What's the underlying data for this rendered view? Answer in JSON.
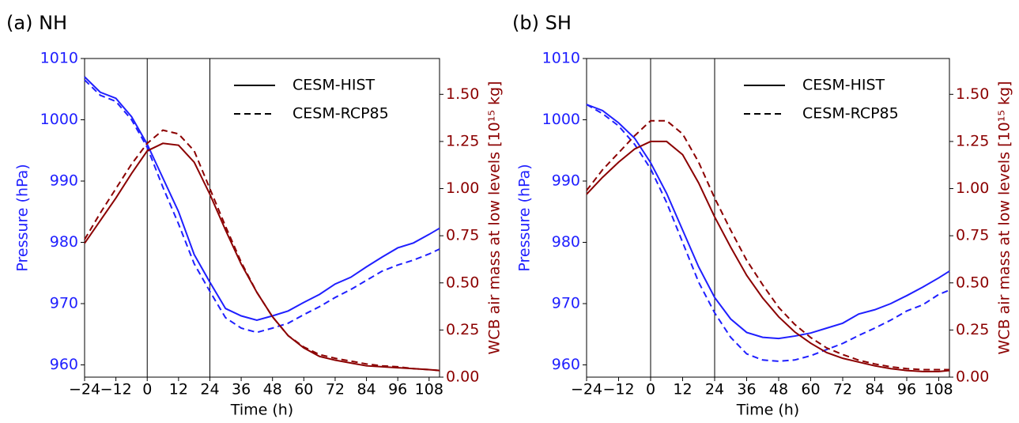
{
  "chart_data": [
    {
      "type": "line",
      "title": "(a) NH",
      "xlabel": "Time (h)",
      "ylabel": "Pressure (hPa)",
      "y2label": "WCB air mass at low levels [10¹⁵ kg]",
      "x": [
        -24,
        -18,
        -12,
        -6,
        0,
        6,
        12,
        18,
        24,
        30,
        36,
        42,
        48,
        54,
        60,
        66,
        72,
        78,
        84,
        90,
        96,
        102,
        108,
        112
      ],
      "xlim": [
        -24,
        112
      ],
      "xticks": [
        {
          "value": -24,
          "label": "−24"
        },
        {
          "value": -12,
          "label": "−12"
        },
        0,
        12,
        24,
        36,
        48,
        60,
        72,
        84,
        96,
        108
      ],
      "ylim": [
        958,
        1010
      ],
      "yticks": [
        960,
        970,
        980,
        990,
        1000,
        1010
      ],
      "y_color": "#1f1fff",
      "y2lim": [
        0,
        1.69
      ],
      "y2ticks": [
        {
          "value": 0,
          "label": "0.00"
        },
        {
          "value": 0.25,
          "label": "0.25"
        },
        {
          "value": 0.5,
          "label": "0.50"
        },
        {
          "value": 0.75,
          "label": "0.75"
        },
        {
          "value": 1,
          "label": "1.00"
        },
        {
          "value": 1.25,
          "label": "1.25"
        },
        {
          "value": 1.5,
          "label": "1.50"
        }
      ],
      "y2_color": "#8b0000",
      "vlines": [
        0,
        24
      ],
      "legend_loc": "upper right",
      "legend_color": "#000000",
      "legend": [
        {
          "label": "CESM-HIST",
          "dash": "solid"
        },
        {
          "label": "CESM-RCP85",
          "dash": "dashed"
        }
      ],
      "series": [
        {
          "axis": "y",
          "dash": "solid",
          "color": "#1f1fff",
          "values": [
            1007,
            1004.5,
            1003.5,
            1000.5,
            996,
            990.5,
            985,
            978,
            973.5,
            969.2,
            968,
            967.3,
            968,
            968.8,
            970.2,
            971.5,
            973.2,
            974.3,
            976,
            977.6,
            979.1,
            979.9,
            981.3,
            982.3
          ]
        },
        {
          "axis": "y",
          "dash": "dashed",
          "color": "#1f1fff",
          "values": [
            1006.5,
            1004,
            1003,
            1000,
            995.5,
            989,
            983,
            976.5,
            972,
            967.7,
            966,
            965.3,
            966,
            966.8,
            968.2,
            969.5,
            971,
            972.3,
            973.8,
            975.3,
            976.3,
            977.1,
            978.1,
            978.9
          ]
        },
        {
          "axis": "y2",
          "dash": "solid",
          "color": "#8b0000",
          "values": [
            0.71,
            0.83,
            0.95,
            1.08,
            1.2,
            1.24,
            1.23,
            1.14,
            0.97,
            0.78,
            0.6,
            0.45,
            0.32,
            0.22,
            0.155,
            0.11,
            0.09,
            0.075,
            0.06,
            0.055,
            0.05,
            0.045,
            0.04,
            0.035
          ]
        },
        {
          "axis": "y2",
          "dash": "dashed",
          "color": "#8b0000",
          "values": [
            0.73,
            0.87,
            1.0,
            1.13,
            1.24,
            1.31,
            1.29,
            1.2,
            1.0,
            0.8,
            0.61,
            0.45,
            0.32,
            0.22,
            0.16,
            0.12,
            0.1,
            0.085,
            0.07,
            0.06,
            0.055,
            0.045,
            0.04,
            0.035
          ]
        }
      ]
    },
    {
      "type": "line",
      "title": "(b) SH",
      "xlabel": "Time (h)",
      "ylabel": "Pressure (hPa)",
      "y2label": "WCB air mass at low levels [10¹⁵ kg]",
      "x": [
        -24,
        -18,
        -12,
        -6,
        0,
        6,
        12,
        18,
        24,
        30,
        36,
        42,
        48,
        54,
        60,
        66,
        72,
        78,
        84,
        90,
        96,
        102,
        108,
        112
      ],
      "xlim": [
        -24,
        112
      ],
      "xticks": [
        {
          "value": -24,
          "label": "−24"
        },
        {
          "value": -12,
          "label": "−12"
        },
        0,
        12,
        24,
        36,
        48,
        60,
        72,
        84,
        96,
        108
      ],
      "ylim": [
        958,
        1010
      ],
      "yticks": [
        960,
        970,
        980,
        990,
        1000,
        1010
      ],
      "y_color": "#1f1fff",
      "y2lim": [
        0,
        1.69
      ],
      "y2ticks": [
        {
          "value": 0,
          "label": "0.00"
        },
        {
          "value": 0.25,
          "label": "0.25"
        },
        {
          "value": 0.5,
          "label": "0.50"
        },
        {
          "value": 0.75,
          "label": "0.75"
        },
        {
          "value": 1,
          "label": "1.00"
        },
        {
          "value": 1.25,
          "label": "1.25"
        },
        {
          "value": 1.5,
          "label": "1.50"
        }
      ],
      "y2_color": "#8b0000",
      "vlines": [
        0,
        24
      ],
      "legend_loc": "upper right",
      "legend_color": "#000000",
      "legend": [
        {
          "label": "CESM-HIST",
          "dash": "solid"
        },
        {
          "label": "CESM-RCP85",
          "dash": "dashed"
        }
      ],
      "series": [
        {
          "axis": "y",
          "dash": "solid",
          "color": "#1f1fff",
          "values": [
            1002.5,
            1001.5,
            999.5,
            997,
            993,
            988,
            982,
            976,
            971,
            967.5,
            965.3,
            964.5,
            964.3,
            964.7,
            965.2,
            966,
            966.8,
            968.3,
            969,
            970,
            971.3,
            972.7,
            974.2,
            975.3
          ]
        },
        {
          "axis": "y",
          "dash": "dashed",
          "color": "#1f1fff",
          "values": [
            1002.5,
            1001,
            999,
            996,
            992,
            986.5,
            980,
            973.5,
            968.5,
            964.5,
            961.8,
            960.8,
            960.6,
            960.8,
            961.5,
            962.5,
            963.5,
            964.8,
            966,
            967.3,
            968.8,
            969.8,
            971.5,
            972.2
          ]
        },
        {
          "axis": "y2",
          "dash": "solid",
          "color": "#8b0000",
          "values": [
            0.97,
            1.06,
            1.14,
            1.21,
            1.25,
            1.25,
            1.18,
            1.03,
            0.85,
            0.69,
            0.54,
            0.42,
            0.32,
            0.24,
            0.18,
            0.13,
            0.1,
            0.08,
            0.06,
            0.045,
            0.035,
            0.03,
            0.03,
            0.035
          ]
        },
        {
          "axis": "y2",
          "dash": "dashed",
          "color": "#8b0000",
          "values": [
            0.99,
            1.1,
            1.19,
            1.28,
            1.36,
            1.36,
            1.29,
            1.14,
            0.95,
            0.78,
            0.62,
            0.49,
            0.37,
            0.28,
            0.21,
            0.155,
            0.12,
            0.09,
            0.07,
            0.055,
            0.045,
            0.04,
            0.04,
            0.04
          ]
        }
      ]
    }
  ]
}
